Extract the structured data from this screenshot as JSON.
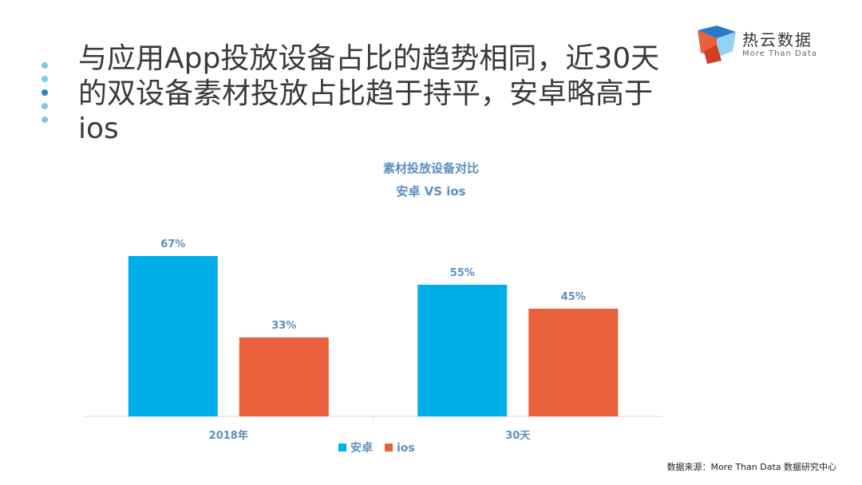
{
  "slide": {
    "title": "与应用App投放设备占比的趋势相同，近30天的双设备素材投放占比趋于持平，安卓略高于ios",
    "source": "数据来源：More Than Data 数据研究中心"
  },
  "logo": {
    "name": "热云数据",
    "tagline": "More Than Data"
  },
  "colors": {
    "android": "#00aeea",
    "ios": "#e8603c",
    "axis": "#d9d9d9",
    "label": "#5b8fc0"
  },
  "chart_data": {
    "type": "bar",
    "title": "素材投放设备对比",
    "subtitle": "安卓 VS ios",
    "categories": [
      "2018年",
      "30天"
    ],
    "series": [
      {
        "name": "安卓",
        "values": [
          67,
          55
        ],
        "labels": [
          "67%",
          "55%"
        ]
      },
      {
        "name": "ios",
        "values": [
          33,
          45
        ],
        "labels": [
          "33%",
          "45%"
        ]
      }
    ],
    "ylim": [
      0,
      100
    ],
    "ylabel": "",
    "xlabel": "",
    "legend": "bottom"
  }
}
